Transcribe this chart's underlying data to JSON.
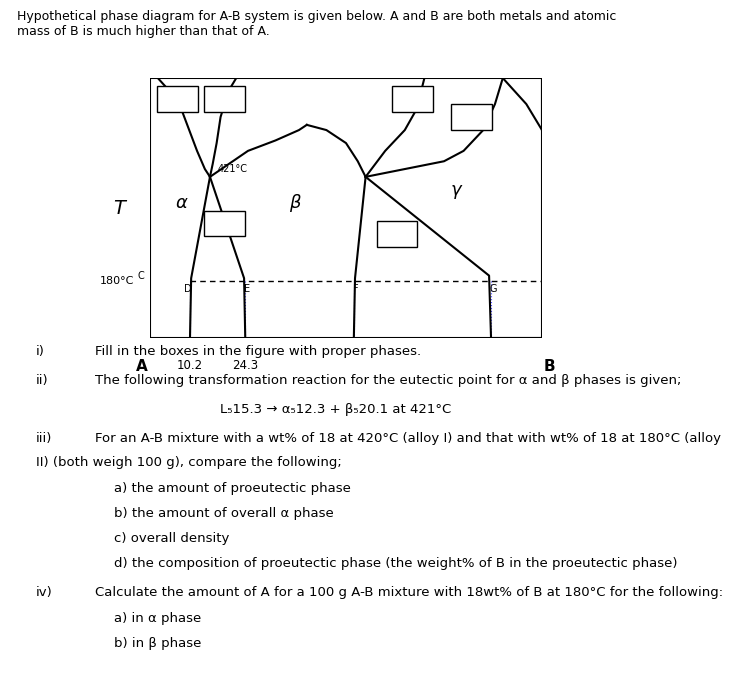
{
  "background_color": "#ffffff",
  "header_text": "Hypothetical phase diagram for A-B system is given below. A and B are both metals and atomic\nmass of B is much higher than that of A.",
  "title_fontsize": 10.5,
  "diagram": {
    "xlim": [
      0,
      100
    ],
    "ylim": [
      0,
      100
    ],
    "x_label_A": "A",
    "x_label_B": "B",
    "x_tick1": "10.2",
    "x_tick2": "24.3",
    "y_label_180": "180°C",
    "y_label_T": "T",
    "temp_421": "421°C",
    "phase_alpha": "α",
    "phase_beta": "β",
    "phase_gamma": "γ",
    "point_C": "C",
    "point_D": "D",
    "point_E": "E",
    "point_F": "F",
    "point_G": "G"
  },
  "questions": [
    {
      "label": "i)",
      "text": "Fill in the boxes in the figure with proper phases."
    },
    {
      "label": "ii)",
      "text": "The following transformation reaction for the eutectic point for α and β phases is given;"
    },
    {
      "label": "",
      "text": "L₅15.3 → α₅12.3 + β₅20.1 at 421°C",
      "center": true
    },
    {
      "label": "iii)",
      "text": "For an A-B mixture with a wt% of 18 at 420°C (alloy I) and that with wt% of 18 at 180°C (alloy\nII) (both weigh 100 g), compare the following;"
    },
    {
      "label": "",
      "sub": "a) the amount of proeutectic phase"
    },
    {
      "label": "",
      "sub": "b) the amount of overall α phase"
    },
    {
      "label": "",
      "sub": "c) overall density"
    },
    {
      "label": "",
      "sub": "d) the composition of proeutectic phase (the weight% of B in the proeutectic phase)"
    },
    {
      "label": "iv)",
      "text": "Calculate the amount of A for a 100 g A-B mixture with 18wt% of B at 180°C for the following:"
    },
    {
      "label": "",
      "sub": "a) in α phase"
    },
    {
      "label": "",
      "sub": "b) in β phase"
    }
  ]
}
